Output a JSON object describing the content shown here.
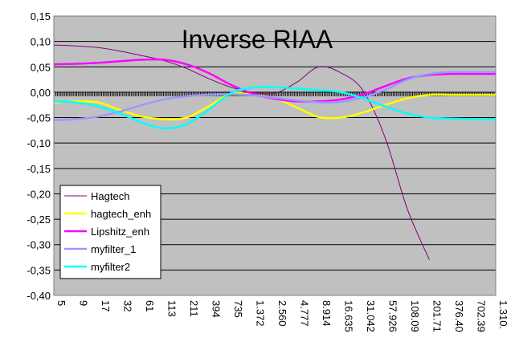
{
  "chart_data": {
    "type": "line",
    "title": "Inverse RIAA",
    "xlabel": "",
    "ylabel": "",
    "x_tick_labels": [
      "5",
      "9",
      "17",
      "32",
      "61",
      "113",
      "211",
      "394",
      "735",
      "1.372",
      "2.560",
      "4.777",
      "8.914",
      "16.635",
      "31.042",
      "57.926",
      "108.09",
      "201.71",
      "376.40",
      "702.39",
      "1.310."
    ],
    "x": [
      0,
      2,
      4,
      6,
      8,
      10,
      12,
      14,
      16,
      18,
      20,
      22,
      24,
      26,
      28,
      30,
      32,
      34,
      36,
      38,
      40
    ],
    "xlim": [
      0,
      40
    ],
    "ylim": [
      -0.4,
      0.15
    ],
    "y_ticks": [
      0.15,
      0.1,
      0.05,
      0.0,
      -0.05,
      -0.1,
      -0.15,
      -0.2,
      -0.25,
      -0.3,
      -0.35,
      -0.4
    ],
    "y_tick_labels": [
      "0,15",
      "0,10",
      "0,05",
      "0,00",
      "-0,05",
      "-0,10",
      "-0,15",
      "-0,20",
      "-0,25",
      "-0,30",
      "-0,35",
      "-0,40"
    ],
    "grid": "horizontal",
    "plot_background": "#c0c0c0",
    "legend_position": "bottom-left",
    "series": [
      {
        "name": "Hagtech",
        "color": "#800080",
        "values": [
          0.093,
          0.091,
          0.088,
          0.081,
          0.072,
          0.062,
          0.047,
          0.027,
          0.01,
          0.0,
          -0.002,
          0.02,
          0.05,
          0.038,
          0.003,
          -0.09,
          -0.23,
          -0.33,
          null,
          null,
          null
        ]
      },
      {
        "name": "hagtech_enh",
        "color": "#ffff00",
        "values": [
          -0.02,
          -0.018,
          -0.02,
          -0.035,
          -0.048,
          -0.053,
          -0.05,
          -0.028,
          -0.003,
          -0.005,
          -0.012,
          -0.03,
          -0.049,
          -0.05,
          -0.04,
          -0.025,
          -0.012,
          -0.005,
          -0.005,
          -0.005,
          -0.005
        ]
      },
      {
        "name": "Lipshitz_enh",
        "color": "#ff00ff",
        "values": [
          0.055,
          0.056,
          0.058,
          0.061,
          0.064,
          0.064,
          0.055,
          0.038,
          0.015,
          -0.003,
          -0.013,
          -0.018,
          -0.018,
          -0.014,
          -0.004,
          0.012,
          0.027,
          0.034,
          0.036,
          0.036,
          0.036
        ]
      },
      {
        "name": "myfilter_1",
        "color": "#9999ff",
        "values": [
          -0.055,
          -0.053,
          -0.048,
          -0.038,
          -0.025,
          -0.014,
          -0.008,
          -0.005,
          -0.004,
          -0.006,
          -0.011,
          -0.016,
          -0.02,
          -0.019,
          -0.01,
          0.005,
          0.025,
          0.036,
          0.04,
          0.04,
          0.04
        ]
      },
      {
        "name": "myfilter2",
        "color": "#00ffff",
        "values": [
          -0.018,
          -0.02,
          -0.028,
          -0.042,
          -0.06,
          -0.071,
          -0.063,
          -0.035,
          -0.002,
          0.009,
          0.01,
          0.007,
          0.004,
          0.0,
          -0.012,
          -0.028,
          -0.042,
          -0.05,
          -0.052,
          -0.053,
          -0.053
        ]
      }
    ]
  }
}
